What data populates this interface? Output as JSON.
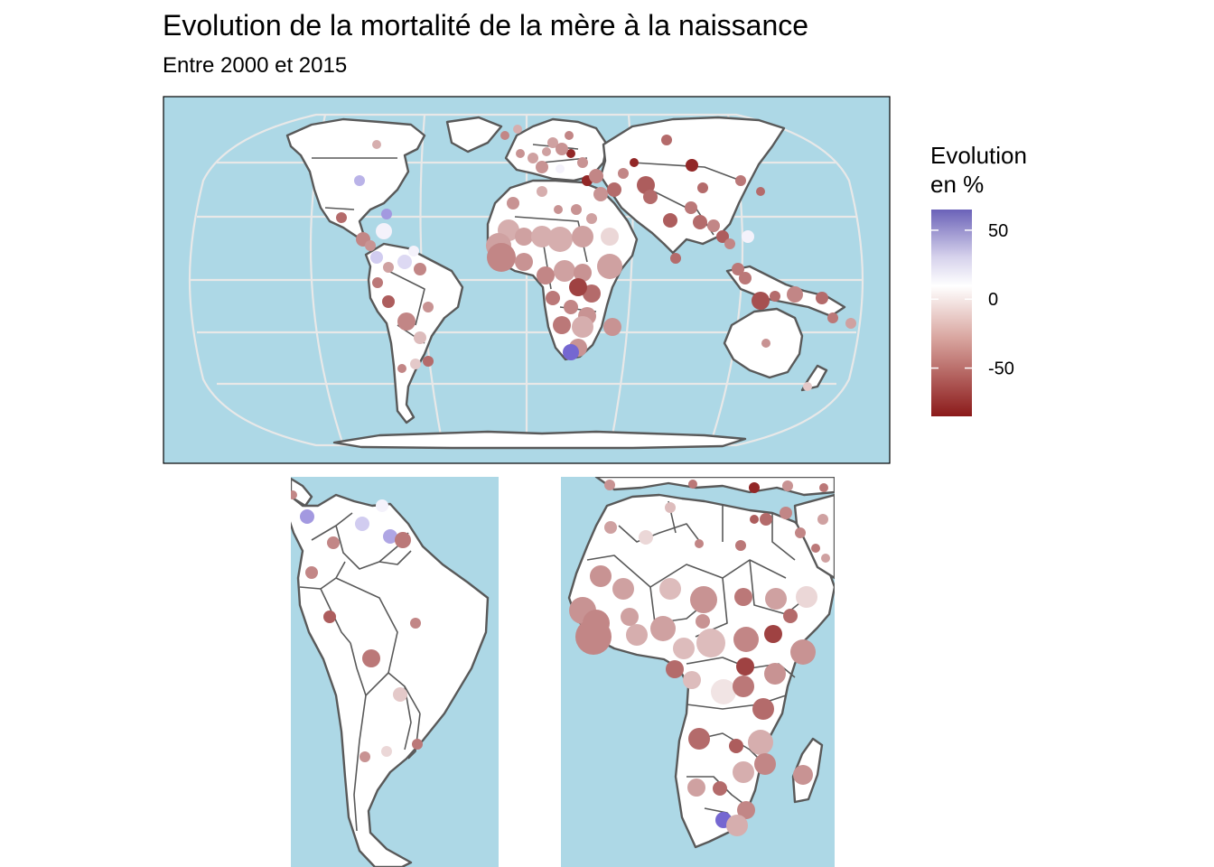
{
  "title": "Evolution de la mortalité de la mère à la naissance",
  "subtitle": "Entre 2000 et 2015",
  "legend": {
    "title_line1": "Evolution",
    "title_line2": "en %",
    "ticks": [
      {
        "label": "50",
        "value": 50
      },
      {
        "label": "0",
        "value": 0
      },
      {
        "label": "-50",
        "value": -50
      }
    ],
    "range": [
      -85,
      65
    ]
  },
  "colors": {
    "ocean": "#add8e6",
    "land": "#ffffff",
    "border": "#595959",
    "graticule": "#e8e8e8",
    "negative": "#8b1a1a",
    "neutral": "#ffffff",
    "positive": "#6a5acd"
  }
}
